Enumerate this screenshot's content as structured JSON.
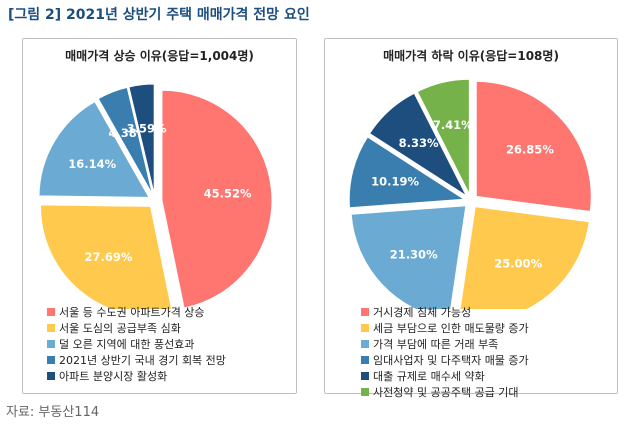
{
  "title": "[그림 2] 2021년 상반기 주택 매매가격 전망 요인",
  "source": "자료: 부동산114",
  "chart_data": [
    {
      "type": "pie",
      "title": "매매가격 상승 이유(응답=1,004명)",
      "slices": [
        {
          "label": "서울 등 수도권 아파트가격 상승",
          "value": 45.52,
          "value_label": "45.52%",
          "color": "#ff7570"
        },
        {
          "label": "서울 도심의 공급부족 심화",
          "value": 27.69,
          "value_label": "27.69%",
          "color": "#ffc94d"
        },
        {
          "label": "덜 오른 지역에 대한 풍선효과",
          "value": 16.14,
          "value_label": "16.14%",
          "color": "#6aaad3"
        },
        {
          "label": "2021년 상반기 국내 경기 회복 전망",
          "value": 4.38,
          "value_label": "4.38%",
          "color": "#3a7eaf"
        },
        {
          "label": "아파트 분양시장 활성화",
          "value": 3.59,
          "value_label": "3.59%",
          "color": "#1d4e7e"
        }
      ]
    },
    {
      "type": "pie",
      "title": "매매가격 하락 이유(응답=108명)",
      "slices": [
        {
          "label": "거시경제 침체 가능성",
          "value": 26.85,
          "value_label": "26.85%",
          "color": "#ff7570"
        },
        {
          "label": "세금 부담으로 인한 매도물량 증가",
          "value": 25.0,
          "value_label": "25.00%",
          "color": "#ffc94d"
        },
        {
          "label": "가격 부담에 따른 거래 부족",
          "value": 21.3,
          "value_label": "21.30%",
          "color": "#6aaad3"
        },
        {
          "label": "임대사업자 및 다주택자 매물 증가",
          "value": 10.19,
          "value_label": "10.19%",
          "color": "#3a7eaf"
        },
        {
          "label": "대출 규제로 매수세 약화",
          "value": 8.33,
          "value_label": "8.33%",
          "color": "#1d4e7e"
        },
        {
          "label": "사전청약 및 공공주택 공급 기대",
          "value": 7.41,
          "value_label": "7.41%",
          "color": "#76b24a"
        }
      ]
    }
  ]
}
